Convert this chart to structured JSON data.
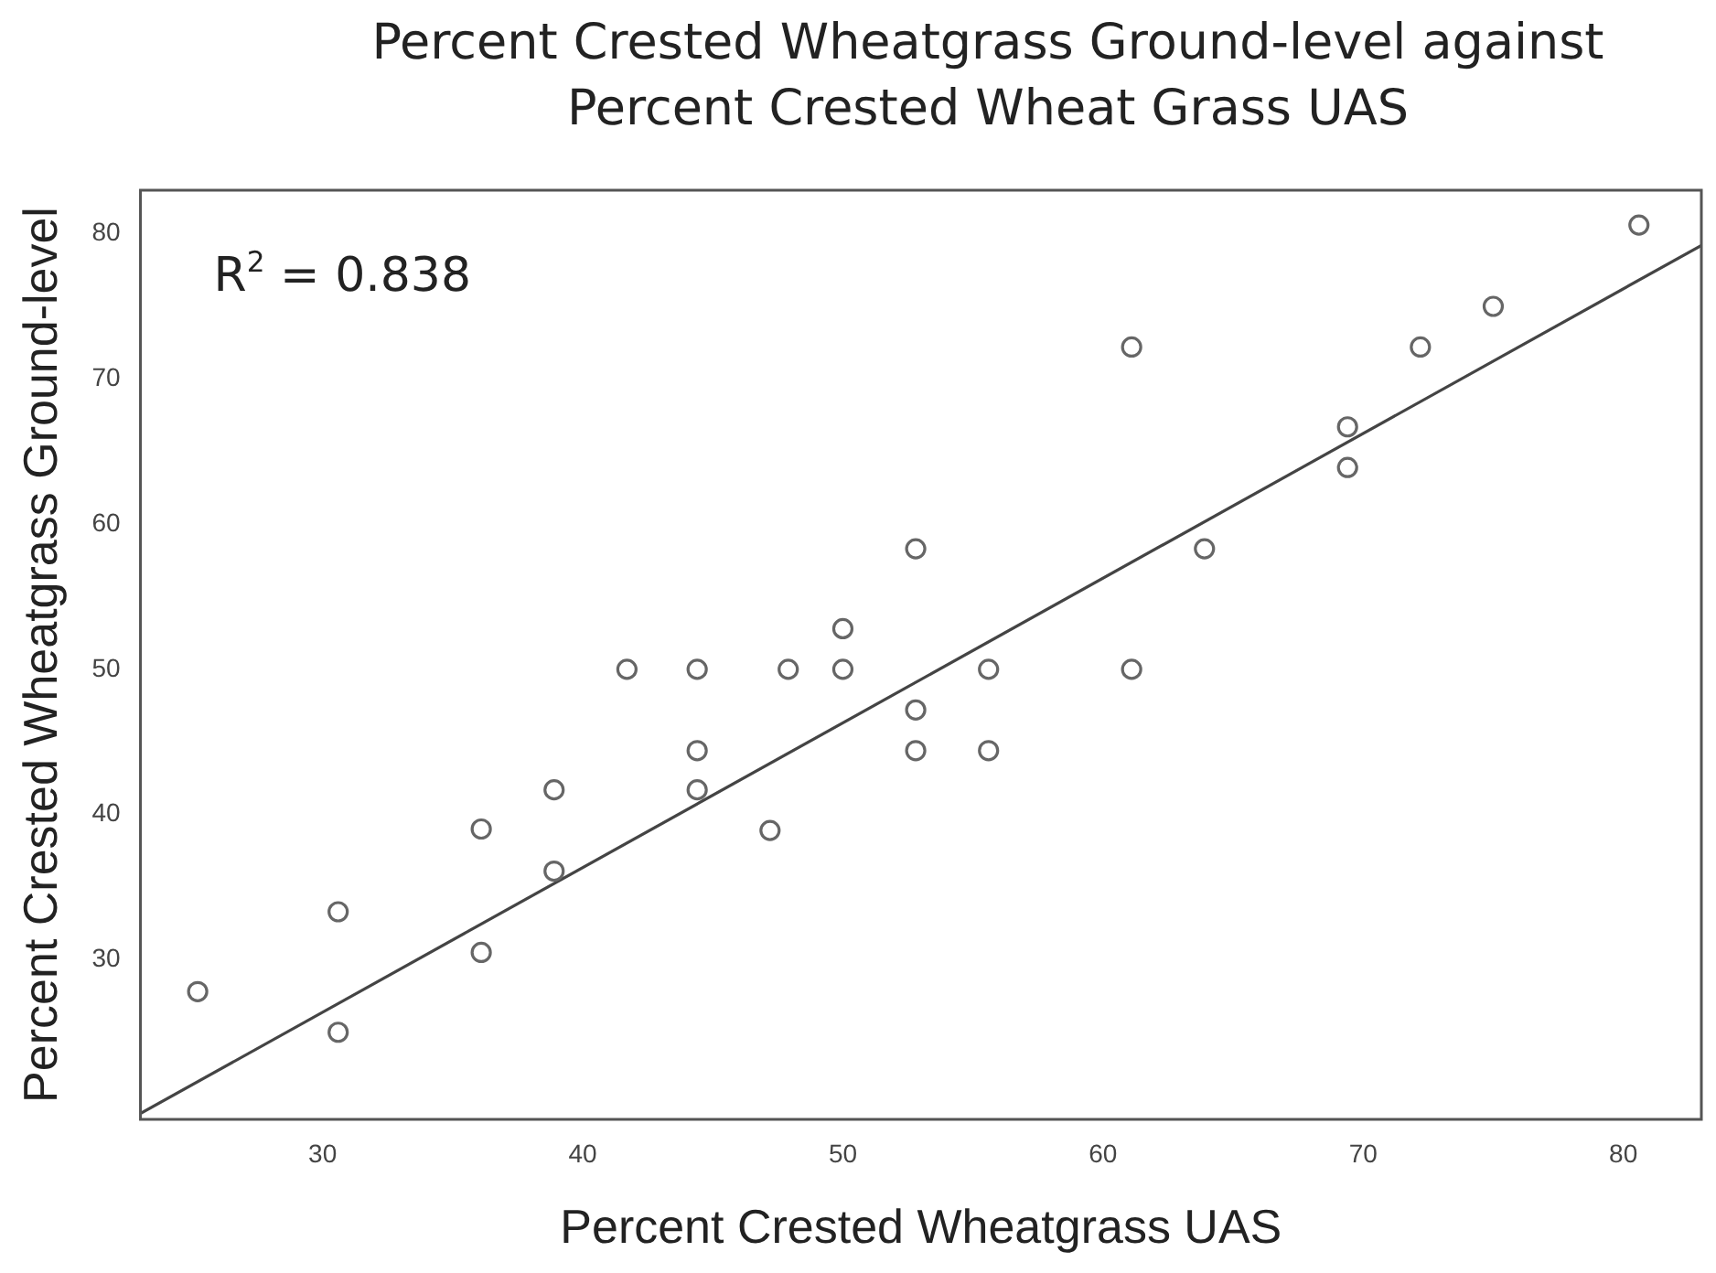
{
  "chart_data": {
    "type": "scatter",
    "title": "Percent Crested Wheatgrass Ground-level against Percent Crested Wheat Grass UAS",
    "xlabel": "Percent Crested Wheatgrass UAS",
    "ylabel": "Percent Crested Wheatgrass Ground-level",
    "annotations": [
      "R$^{2}$ = 0.838"
    ],
    "xlim": [
      23,
      83
    ],
    "ylim": [
      19,
      83
    ],
    "xticks": [
      30,
      40,
      50,
      60,
      70,
      80
    ],
    "yticks": [
      30,
      40,
      50,
      60,
      70,
      80
    ],
    "grid": false,
    "legend": false,
    "marker": "circle",
    "series": [
      {
        "color": "#666666",
        "x": [
          25.2,
          30.6,
          30.6,
          36.1,
          36.1,
          38.9,
          38.9,
          41.7,
          44.4,
          44.4,
          44.4,
          47.2,
          47.9,
          50,
          50,
          52.8,
          52.8,
          52.8,
          55.6,
          55.6,
          61.1,
          61.1,
          63.9,
          69.4,
          69.4,
          72.2,
          75,
          80.6
        ],
        "values": [
          27.8,
          33.3,
          25,
          39,
          30.5,
          41.7,
          36.1,
          50,
          50,
          44.4,
          41.7,
          38.9,
          50,
          52.8,
          50,
          58.3,
          47.2,
          44.4,
          50,
          44.4,
          72.2,
          50,
          58.3,
          66.7,
          63.9,
          72.2,
          75,
          80.6
        ]
      },
      {
        "type": "line",
        "marker": "none",
        "color": "#444444",
        "x": [
          23,
          83
        ],
        "values": [
          19.4,
          79.2
        ]
      }
    ]
  }
}
